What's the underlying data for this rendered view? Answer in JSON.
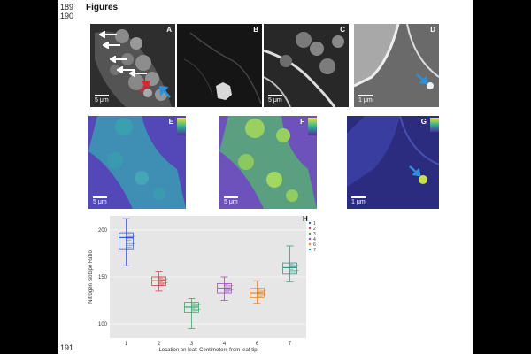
{
  "line_numbers": {
    "top_a": "189",
    "top_b": "190",
    "bottom": "191"
  },
  "heading": "Figures",
  "panels": {
    "A": {
      "label": "A",
      "scale": "5 μm"
    },
    "B": {
      "label": "B"
    },
    "C": {
      "label": "C",
      "scale": "5 μm"
    },
    "D": {
      "label": "D",
      "scale": "1 μm"
    },
    "E": {
      "label": "E",
      "scale": "5 μm"
    },
    "F": {
      "label": "F",
      "scale": "5 μm"
    },
    "G": {
      "label": "G",
      "scale": "1 μm"
    },
    "H": {
      "label": "H"
    }
  },
  "colors": {
    "blue_arrow": "#2f8fd8",
    "red_arrow": "#d8262b",
    "white_arrow": "#ffffff"
  },
  "chart_data": {
    "type": "box",
    "ylabel": "Nitrogen Isotope Ratio",
    "xlabel": "Location on leaf: Centimeters from leaf tip",
    "categories": [
      "1",
      "2",
      "3",
      "4",
      "6",
      "7"
    ],
    "yticks": [
      100,
      150,
      200
    ],
    "ylim": [
      85,
      215
    ],
    "legend_placement": "right",
    "legend": [
      "1",
      "2",
      "3",
      "4",
      "6",
      "7"
    ],
    "series": [
      {
        "name": "1",
        "color": "#3a5fcf",
        "q1": 180,
        "median": 192,
        "q3": 197,
        "min": 162,
        "max": 212
      },
      {
        "name": "2",
        "color": "#d9414b",
        "q1": 141,
        "median": 146,
        "q3": 150,
        "min": 135,
        "max": 156
      },
      {
        "name": "3",
        "color": "#3aa86b",
        "q1": 112,
        "median": 118,
        "q3": 123,
        "min": 95,
        "max": 127
      },
      {
        "name": "4",
        "color": "#9a4fc9",
        "q1": 133,
        "median": 138,
        "q3": 143,
        "min": 125,
        "max": 150
      },
      {
        "name": "6",
        "color": "#e08a2e",
        "q1": 128,
        "median": 133,
        "q3": 138,
        "min": 122,
        "max": 146
      },
      {
        "name": "7",
        "color": "#2aa08c",
        "q1": 153,
        "median": 160,
        "q3": 165,
        "min": 145,
        "max": 183
      }
    ]
  }
}
